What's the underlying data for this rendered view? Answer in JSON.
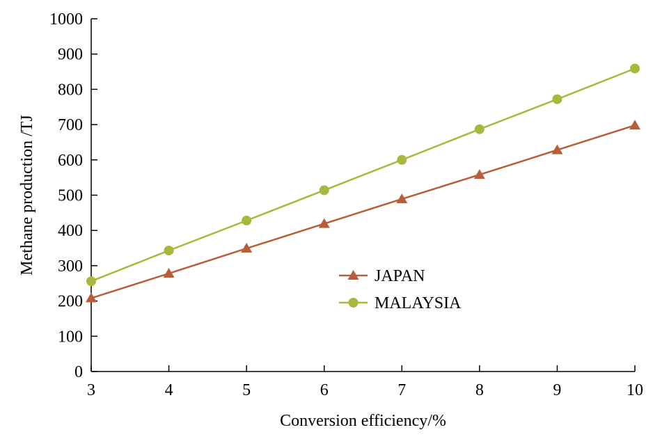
{
  "chart_data": {
    "type": "line",
    "xlabel": "Conversion efficiency/%",
    "ylabel": "Methane production /TJ",
    "xlim": [
      3,
      10
    ],
    "ylim": [
      0,
      1000
    ],
    "x_ticks": [
      3,
      4,
      5,
      6,
      7,
      8,
      9,
      10
    ],
    "y_ticks": [
      0,
      100,
      200,
      300,
      400,
      500,
      600,
      700,
      800,
      900,
      1000
    ],
    "x": [
      3,
      4,
      5,
      6,
      7,
      8,
      9,
      10
    ],
    "grid": false,
    "legend_position": "center-right",
    "series": [
      {
        "name": "JAPAN",
        "marker": "triangle",
        "color": "#B85D37",
        "values": [
          208,
          278,
          349,
          419,
          489,
          558,
          628,
          698
        ]
      },
      {
        "name": "MALAYSIA",
        "marker": "circle",
        "color": "#A9B83C",
        "values": [
          256,
          343,
          428,
          514,
          600,
          687,
          772,
          859
        ]
      }
    ]
  }
}
